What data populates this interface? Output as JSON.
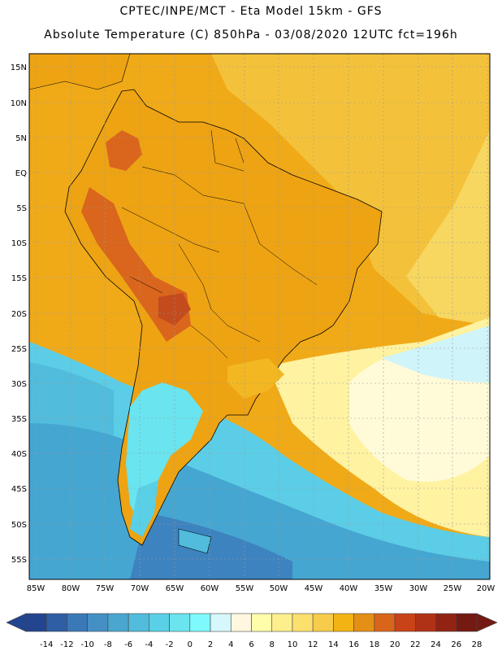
{
  "header": {
    "line1": "CPTEC/INPE/MCT -   Eta Model 15km - GFS",
    "line2": "Absolute Temperature (C) 850hPa - 03/08/2020 12UTC fct=196h"
  },
  "axes": {
    "lat_labels": [
      "15N",
      "10N",
      "5N",
      "EQ",
      "5S",
      "10S",
      "15S",
      "20S",
      "25S",
      "30S",
      "35S",
      "40S",
      "45S",
      "50S",
      "55S"
    ],
    "lon_labels": [
      "85W",
      "80W",
      "75W",
      "70W",
      "65W",
      "60W",
      "55W",
      "50W",
      "45W",
      "40W",
      "35W",
      "30W",
      "25W",
      "20W"
    ]
  },
  "colorbar": {
    "colors": [
      "#23458f",
      "#2f5ea5",
      "#3a78b8",
      "#4490c5",
      "#4aa6cf",
      "#51bcdc",
      "#5ad0e6",
      "#6ae4ef",
      "#7efafc",
      "#d6f7fb",
      "#fff7df",
      "#fffcaa",
      "#fdef8e",
      "#fbe06e",
      "#f8cc4b",
      "#f2b313",
      "#e48f16",
      "#d9651a",
      "#c94318",
      "#b03216",
      "#922313",
      "#741a12"
    ],
    "labels": [
      "-14",
      "-12",
      "-10",
      "-8",
      "-6",
      "-4",
      "-2",
      "0",
      "2",
      "4",
      "6",
      "8",
      "10",
      "12",
      "14",
      "16",
      "18",
      "20",
      "22",
      "24",
      "26",
      "28"
    ]
  },
  "map": {
    "land_color": "#eea313",
    "warm_color": "#d9661c",
    "hot_color": "#c34b1e",
    "ocean_warm": "#f2b721",
    "ocean_mild": "#f5cf4a",
    "ocean_cool": "#fff2a1",
    "ocean_pale": "#fffbd8",
    "ocean_cold": "#5ccde6",
    "ocean_colder": "#45a6d1",
    "ocean_coldest": "#3d83bf"
  }
}
